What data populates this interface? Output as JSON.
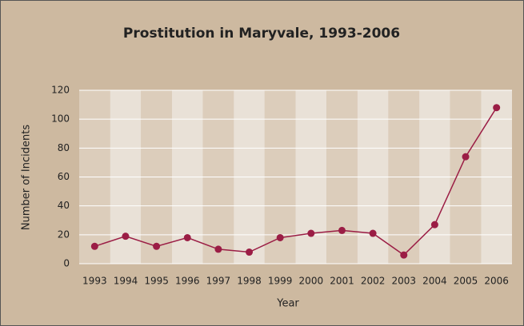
{
  "chart_data": {
    "type": "line",
    "title": "Prostitution in Maryvale, 1993-2006",
    "xlabel": "Year",
    "ylabel": "Number of Incidents",
    "categories": [
      "1993",
      "1994",
      "1995",
      "1996",
      "1997",
      "1998",
      "1999",
      "2000",
      "2001",
      "2002",
      "2003",
      "2004",
      "2005",
      "2006"
    ],
    "series": [
      {
        "name": "Incidents",
        "color": "#9b1d45",
        "values": [
          12,
          19,
          12,
          18,
          10,
          8,
          18,
          21,
          23,
          21,
          6,
          27,
          74,
          108
        ]
      }
    ],
    "ylim": [
      0,
      120
    ],
    "yticks": [
      0,
      20,
      40,
      60,
      80,
      100,
      120
    ],
    "grid": true
  }
}
